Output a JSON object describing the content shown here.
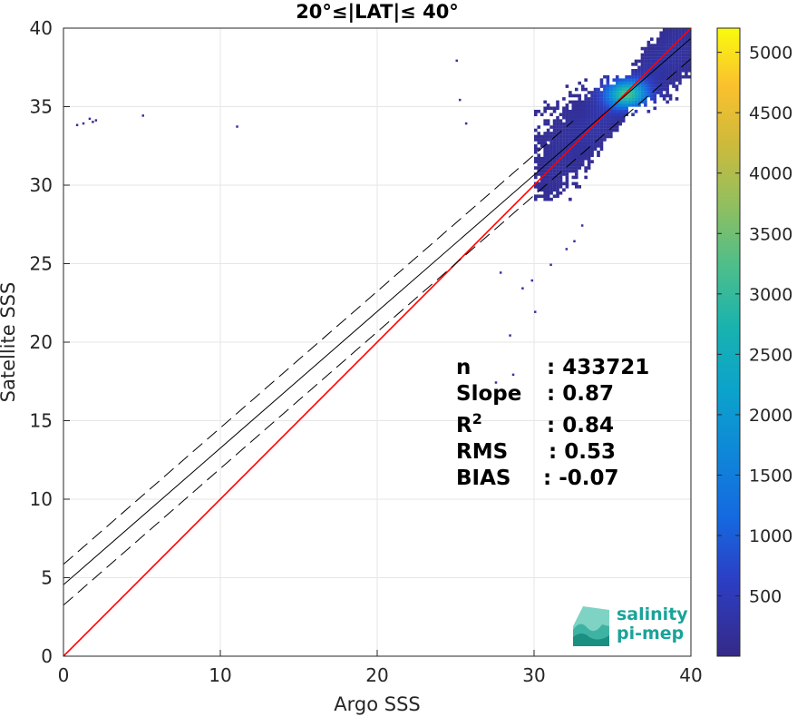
{
  "chart_data": {
    "type": "heatmap",
    "title": "20°≤|LAT|≤ 40°",
    "xlabel": "Argo SSS",
    "ylabel": "Satellite SSS",
    "xlim": [
      0,
      40
    ],
    "ylim": [
      0,
      40
    ],
    "xticks": [
      "0",
      "10",
      "20",
      "30",
      "40"
    ],
    "yticks": [
      "0",
      "5",
      "10",
      "15",
      "20",
      "25",
      "30",
      "35",
      "40"
    ],
    "grid": true,
    "colorbar": {
      "colormap": "parula",
      "range": [
        1,
        5200
      ],
      "ticks": [
        500,
        1000,
        1500,
        2000,
        2500,
        3000,
        3500,
        4000,
        4500,
        5000
      ],
      "tick_labels": [
        "500",
        "1000",
        "1500",
        "2000",
        "2500",
        "3000",
        "3500",
        "4000",
        "4500",
        "5000"
      ]
    },
    "density_core": {
      "x_range": [
        30,
        40
      ],
      "y_range": [
        29,
        40
      ],
      "peak": [
        35.8,
        35.7
      ]
    },
    "lines": [
      {
        "id": "one-to-one",
        "color": "#ff0000",
        "style": "solid",
        "x": [
          0,
          40
        ],
        "y": [
          0,
          40
        ]
      },
      {
        "id": "regression",
        "color": "#000000",
        "style": "solid",
        "x": [
          0,
          40
        ],
        "y": [
          4.55,
          39.35
        ]
      },
      {
        "id": "regression-upper",
        "color": "#000000",
        "style": "dashed",
        "x": [
          0,
          32.5
        ],
        "y": [
          5.85,
          34.1
        ]
      },
      {
        "id": "regression-lower",
        "color": "#000000",
        "style": "dashed",
        "x": [
          0,
          40
        ],
        "y": [
          3.25,
          38.05
        ]
      }
    ],
    "stats": [
      {
        "label": "n",
        "sup": "",
        "value": ": 433721"
      },
      {
        "label": "Slope",
        "sup": "",
        "value": ": 0.87"
      },
      {
        "label": "R",
        "sup": "2",
        "value": ": 0.84"
      },
      {
        "label": "RMS",
        "sup": "",
        "value": ": 0.53"
      },
      {
        "label": "BIAS",
        "sup": "",
        "value": ": -0.07"
      }
    ],
    "logo": {
      "line1": "salinity",
      "line2": "pi-mep"
    }
  }
}
